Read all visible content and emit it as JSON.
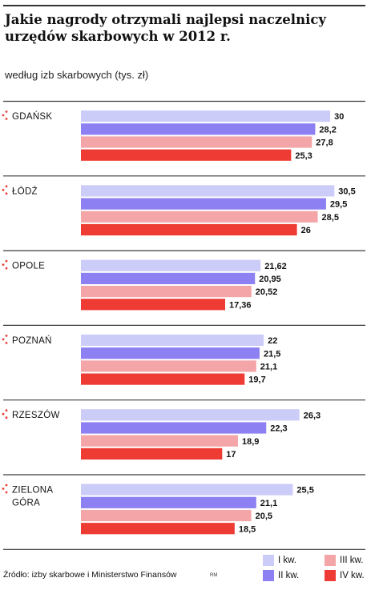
{
  "title": "Jakie nagrody otrzymali najlepsi naczelnicy urzędów skarbowych w 2012 r.",
  "subtitle": "według izb skarbowych (tys. zł)",
  "source": "Źródło: izby skarbowe i Ministerstwo Finansów",
  "initials": "RM",
  "colors": {
    "q1": "#ccccf9",
    "q2": "#8c80f2",
    "q3": "#f4a5a8",
    "q4": "#ee3b33",
    "marker": "#e8403a"
  },
  "chart_data": {
    "type": "bar",
    "orientation": "horizontal",
    "categories": [
      "GDAŃSK",
      "ŁÓDŹ",
      "OPOLE",
      "POZNAŃ",
      "RZESZÓW",
      "ZIELONA GÓRA"
    ],
    "series": [
      {
        "name": "I kw.",
        "values": [
          30,
          30.5,
          21.62,
          22,
          26.3,
          25.5
        ],
        "labels": [
          "30",
          "30,5",
          "21,62",
          "22",
          "26,3",
          "25,5"
        ]
      },
      {
        "name": "II kw.",
        "values": [
          28.2,
          29.5,
          20.95,
          21.5,
          22.3,
          21.1
        ],
        "labels": [
          "28,2",
          "29,5",
          "20,95",
          "21,5",
          "22,3",
          "21,1"
        ]
      },
      {
        "name": "III kw.",
        "values": [
          27.8,
          28.5,
          20.52,
          21.1,
          18.9,
          20.5
        ],
        "labels": [
          "27,8",
          "28,5",
          "20,52",
          "21,1",
          "18,9",
          "20,5"
        ]
      },
      {
        "name": "IV kw.",
        "values": [
          25.3,
          26,
          17.36,
          19.7,
          17,
          18.5
        ],
        "labels": [
          "25,3",
          "26",
          "17,36",
          "19,7",
          "17",
          "18,5"
        ]
      }
    ],
    "xlim": [
      0,
      32
    ],
    "grid": false,
    "legend_position": "bottom-right"
  }
}
